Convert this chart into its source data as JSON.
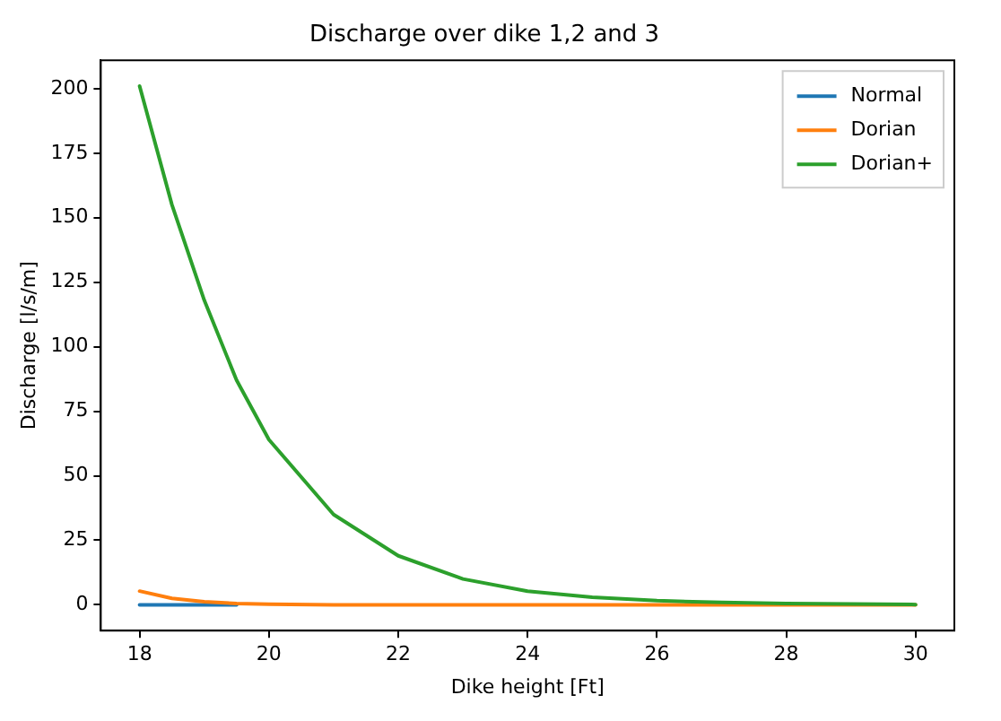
{
  "chart_data": {
    "type": "line",
    "title": "Discharge over dike 1,2 and 3",
    "xlabel": "Dike height [Ft]",
    "ylabel": "Discharge [l/s/m]",
    "x": [
      18,
      18.5,
      19,
      19.5,
      20,
      21,
      22,
      23,
      24,
      25,
      26,
      27,
      28,
      29,
      30
    ],
    "series": [
      {
        "name": "Normal",
        "color": "#1f77b4",
        "values": [
          0,
          0,
          0,
          0,
          null,
          null,
          null,
          null,
          null,
          null,
          null,
          null,
          null,
          null,
          null
        ]
      },
      {
        "name": "Dorian",
        "color": "#ff7f0e",
        "values": [
          5.3,
          2.5,
          1.2,
          0.5,
          0.2,
          0,
          0,
          0,
          0,
          0,
          0,
          0,
          0,
          0,
          0
        ]
      },
      {
        "name": "Dorian+",
        "color": "#2ca02c",
        "values": [
          201,
          155,
          118,
          87,
          64,
          35,
          19,
          10,
          5.3,
          2.9,
          1.6,
          0.9,
          0.5,
          0.3,
          0.1
        ]
      }
    ],
    "xlim": [
      17.4,
      30.6
    ],
    "xticks": [
      18,
      20,
      22,
      24,
      26,
      28,
      30
    ],
    "ylim": [
      -10,
      211
    ],
    "yticks": [
      0,
      25,
      50,
      75,
      100,
      125,
      150,
      175,
      200
    ],
    "grid": false,
    "legend": "top right",
    "marker": "none",
    "line_style": "solid"
  }
}
